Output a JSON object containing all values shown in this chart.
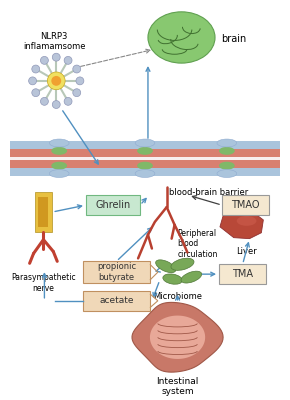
{
  "background_color": "#ffffff",
  "fig_width": 2.9,
  "fig_height": 4.0,
  "dpi": 100,
  "labels": {
    "nlrp3": "NLRP3\ninflamamsome",
    "brain": "brain",
    "bbb": "blood-brain barrier",
    "ghrelin": "Ghrelin",
    "tmao": "TMAO",
    "peripheral": "Peripheral\nblood\ncirculation",
    "parasympathetic": "Parasympathetic\nnerve",
    "propionic": "propionic\nbutyrate",
    "acetate": "acetate",
    "microbiome": "Microbiome",
    "tma": "TMA",
    "liver": "Liver",
    "intestinal": "Intestinal\nsystem"
  },
  "colors": {
    "box_ghrelin_bg": "#c8e8d0",
    "box_ghrelin_border": "#70b880",
    "box_tmao_bg": "#f5e8d0",
    "box_tmao_border": "#999999",
    "box_tma_bg": "#f5e8d0",
    "box_tma_border": "#999999",
    "box_propionic_bg": "#f0d8b8",
    "box_propionic_border": "#c09060",
    "box_acetate_bg": "#f0d8b8",
    "box_acetate_border": "#c09060",
    "arrow_color": "#5090c0",
    "arrow_dark": "#404040",
    "bbb_salmon": "#e8a090",
    "bbb_red": "#d07060",
    "bbb_blue": "#a8c8e0",
    "bbb_green": "#88c080",
    "brain_green": "#88c870",
    "brain_edge": "#60a050",
    "nlrp3_center": "#f0d870",
    "nlrp3_spoke": "#c8d8c0",
    "nlrp3_node": "#c0c8d8",
    "nerve_yellow": "#e8c040",
    "nerve_red": "#c04030",
    "liver_color": "#b84838",
    "microbiome_green": "#78a858",
    "intestine_pink": "#c87868",
    "intestine_light": "#e8a898",
    "vessel_red": "#b84030"
  }
}
